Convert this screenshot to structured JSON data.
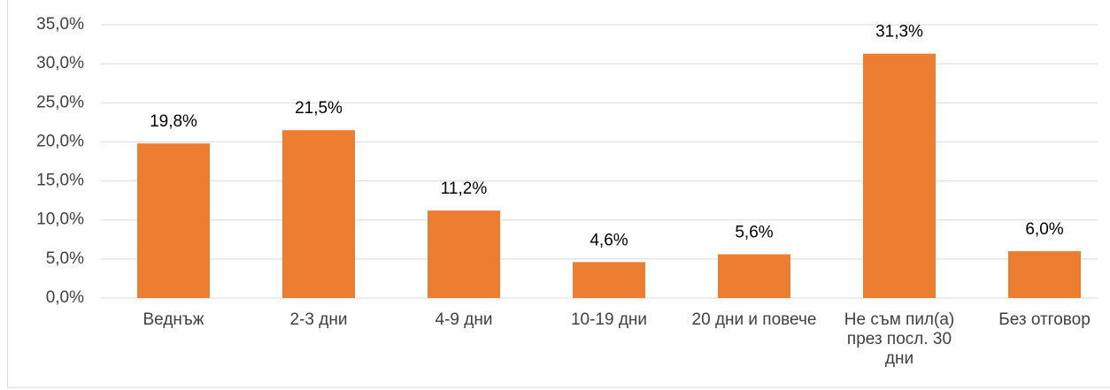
{
  "chart_data": {
    "type": "bar",
    "categories": [
      "Веднъж",
      "2-3 дни",
      "4-9 дни",
      "10-19 дни",
      "20 дни и повече",
      "Не съм пил(а) през посл. 30 дни",
      "Без отговор"
    ],
    "values": [
      19.8,
      21.5,
      11.2,
      4.6,
      5.6,
      31.3,
      6.0
    ],
    "value_labels": [
      "19,8%",
      "21,5%",
      "11,2%",
      "4,6%",
      "5,6%",
      "31,3%",
      "6,0%"
    ],
    "color": "#ED7D31",
    "ylim": [
      0,
      35
    ],
    "yticks": [
      {
        "value": 0,
        "label": "0,0%"
      },
      {
        "value": 5,
        "label": "5,0%"
      },
      {
        "value": 10,
        "label": "10,0%"
      },
      {
        "value": 15,
        "label": "15,0%"
      },
      {
        "value": 20,
        "label": "20,0%"
      },
      {
        "value": 25,
        "label": "25,0%"
      },
      {
        "value": 30,
        "label": "30,0%"
      },
      {
        "value": 35,
        "label": "35,0%"
      }
    ],
    "grid": true
  }
}
